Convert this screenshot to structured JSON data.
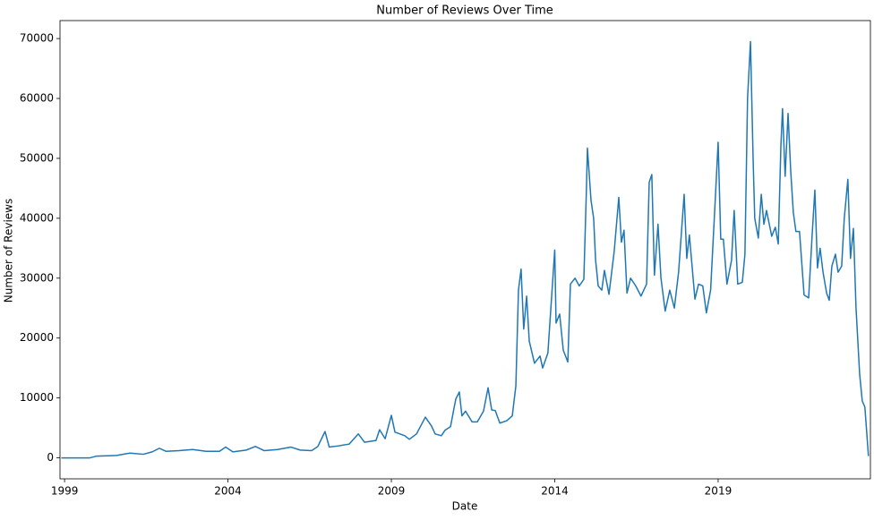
{
  "chart_data": {
    "type": "line",
    "title": "Number of Reviews Over Time",
    "xlabel": "Date",
    "ylabel": "Number of Reviews",
    "x": [
      1998.9,
      1999.77,
      1999.99,
      2000.59,
      2001.0,
      2001.41,
      2001.68,
      2001.9,
      2002.1,
      2002.5,
      2002.92,
      2003.33,
      2003.74,
      2003.93,
      2004.15,
      2004.56,
      2004.84,
      2005.11,
      2005.52,
      2005.93,
      2006.21,
      2006.56,
      2006.75,
      2006.97,
      2007.1,
      2007.38,
      2007.71,
      2007.99,
      2008.18,
      2008.53,
      2008.64,
      2008.81,
      2009.0,
      2009.11,
      2009.41,
      2009.55,
      2009.77,
      2010.04,
      2010.23,
      2010.34,
      2010.53,
      2010.64,
      2010.81,
      2010.97,
      2011.08,
      2011.16,
      2011.27,
      2011.47,
      2011.63,
      2011.82,
      2011.96,
      2012.07,
      2012.18,
      2012.32,
      2012.53,
      2012.7,
      2012.81,
      2012.89,
      2012.97,
      2013.05,
      2013.14,
      2013.22,
      2013.38,
      2013.55,
      2013.63,
      2013.79,
      2014.0,
      2014.04,
      2014.15,
      2014.26,
      2014.4,
      2014.48,
      2014.62,
      2014.75,
      2014.89,
      2014.97,
      2015.0,
      2015.11,
      2015.19,
      2015.25,
      2015.33,
      2015.44,
      2015.52,
      2015.66,
      2015.82,
      2015.96,
      2016.04,
      2016.12,
      2016.21,
      2016.32,
      2016.48,
      2016.64,
      2016.81,
      2016.89,
      2016.97,
      2017.05,
      2017.16,
      2017.25,
      2017.38,
      2017.52,
      2017.66,
      2017.79,
      2017.96,
      2018.04,
      2018.12,
      2018.29,
      2018.4,
      2018.53,
      2018.64,
      2018.77,
      2018.92,
      2019.0,
      2019.08,
      2019.16,
      2019.27,
      2019.41,
      2019.49,
      2019.6,
      2019.74,
      2019.82,
      2019.9,
      2019.99,
      2020.07,
      2020.12,
      2020.23,
      2020.32,
      2020.4,
      2020.48,
      2020.64,
      2020.75,
      2020.84,
      2020.92,
      2020.97,
      2021.05,
      2021.14,
      2021.22,
      2021.3,
      2021.38,
      2021.49,
      2021.63,
      2021.77,
      2021.88,
      2021.96,
      2022.04,
      2022.12,
      2022.21,
      2022.32,
      2022.4,
      2022.48,
      2022.59,
      2022.67,
      2022.78,
      2022.86,
      2022.97,
      2023.05,
      2023.14,
      2023.22,
      2023.33,
      2023.41,
      2023.49,
      2023.6
    ],
    "series": [
      {
        "name": "Reviews",
        "color": "#1f77b4",
        "values": [
          0,
          0,
          300,
          400,
          800,
          600,
          1000,
          1600,
          1100,
          1200,
          1400,
          1100,
          1100,
          1800,
          1000,
          1300,
          1900,
          1200,
          1400,
          1800,
          1300,
          1200,
          1900,
          4400,
          1800,
          2000,
          2300,
          4000,
          2600,
          2900,
          4700,
          3200,
          7100,
          4300,
          3700,
          3100,
          4000,
          6800,
          5300,
          4000,
          3700,
          4600,
          5200,
          9800,
          11000,
          7000,
          7800,
          6000,
          6000,
          7800,
          11700,
          8000,
          7900,
          5800,
          6200,
          7000,
          12000,
          28000,
          31500,
          21500,
          27000,
          19500,
          15800,
          17000,
          15000,
          17500,
          34700,
          22500,
          24000,
          18000,
          16000,
          29000,
          30000,
          28700,
          29800,
          45000,
          51700,
          43000,
          40000,
          33000,
          28700,
          28000,
          31300,
          27300,
          34500,
          43500,
          36000,
          38000,
          27500,
          30000,
          28700,
          27000,
          29000,
          46000,
          47300,
          30500,
          39000,
          30000,
          24500,
          28000,
          25000,
          31000,
          44000,
          33300,
          37200,
          26500,
          29000,
          28700,
          24200,
          28000,
          44000,
          52700,
          36500,
          36500,
          29000,
          33000,
          41300,
          29000,
          29300,
          34000,
          60000,
          69500,
          50000,
          40000,
          36700,
          44000,
          39000,
          41300,
          37000,
          38500,
          35700,
          52000,
          58300,
          47000,
          57500,
          48000,
          41000,
          37800,
          37800,
          27200,
          26700,
          37500,
          44700,
          31700,
          35000,
          31000,
          27500,
          26300,
          32000,
          34000,
          31000,
          32000,
          40000,
          46500,
          33300,
          38300,
          25000,
          14000,
          9500,
          8500,
          300
        ]
      }
    ],
    "xlim": [
      1998.86,
      2023.66
    ],
    "xticks": [
      1999,
      2004,
      2009,
      2014,
      2019
    ],
    "ylim": [
      -3500,
      73000
    ],
    "yticks": [
      0,
      10000,
      20000,
      30000,
      40000,
      50000,
      60000,
      70000
    ]
  }
}
